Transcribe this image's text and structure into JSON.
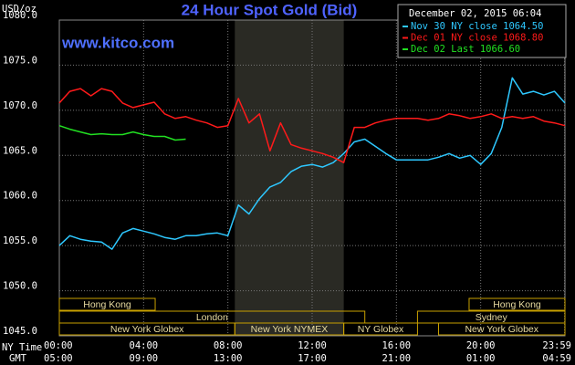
{
  "chart_data": {
    "type": "line",
    "title": "24 Hour Spot Gold (Bid)",
    "watermark": "www.kitco.com",
    "ylabel": "USD/oz",
    "legend_title": "December 02, 2015 06:04",
    "legend_position": "upper right",
    "grid": true,
    "x_label_ny": "NY Time",
    "x_label_gmt": "GMT",
    "xlim": [
      0,
      24
    ],
    "xticks": [
      {
        "value": 0,
        "label": "00:00"
      },
      {
        "value": 4,
        "label": "04:00"
      },
      {
        "value": 8,
        "label": "08:00"
      },
      {
        "value": 12,
        "label": "12:00"
      },
      {
        "value": 16,
        "label": "16:00"
      },
      {
        "value": 20,
        "label": "20:00"
      },
      {
        "value": 23.9833,
        "label": "23:59"
      }
    ],
    "x_gmt_labels": [
      "05:00",
      "09:00",
      "13:00",
      "17:00",
      "21:00",
      "01:00",
      "04:59"
    ],
    "ylim": [
      1045,
      1080
    ],
    "yticks": [
      {
        "value": 1045,
        "label": "1045.0"
      },
      {
        "value": 1050,
        "label": "1050.0"
      },
      {
        "value": 1055,
        "label": "1055.0"
      },
      {
        "value": 1060,
        "label": "1060.0"
      },
      {
        "value": 1065,
        "label": "1065.0"
      },
      {
        "value": 1070,
        "label": "1070.0"
      },
      {
        "value": 1075,
        "label": "1075.0"
      },
      {
        "value": 1080,
        "label": "1080.0"
      }
    ],
    "highlight": [
      8.33,
      13.5
    ],
    "sessions": [
      {
        "label": "Hong Kong",
        "start": 0,
        "end": 4.55,
        "row": 0
      },
      {
        "label": "Hong Kong",
        "start": 19.45,
        "end": 24,
        "row": 0
      },
      {
        "label": "London",
        "start": 0,
        "end": 14.5,
        "row": 1
      },
      {
        "label": "Sydney",
        "start": 17,
        "end": 24,
        "row": 1
      },
      {
        "label": "New York Globex",
        "start": 0,
        "end": 8.33,
        "row": 2
      },
      {
        "label": "New York NYMEX",
        "start": 8.33,
        "end": 13.5,
        "row": 2
      },
      {
        "label": "NY Globex",
        "start": 13.5,
        "end": 17,
        "row": 2
      },
      {
        "label": "New York Globex",
        "start": 18,
        "end": 24,
        "row": 2
      }
    ],
    "x": [
      0,
      0.5,
      1,
      1.5,
      2,
      2.5,
      3,
      3.5,
      4,
      4.5,
      5,
      5.5,
      6,
      6.5,
      7,
      7.5,
      8,
      8.5,
      9,
      9.5,
      10,
      10.5,
      11,
      11.5,
      12,
      12.5,
      13,
      13.5,
      14,
      14.5,
      15,
      15.5,
      16,
      16.5,
      17,
      17.5,
      18,
      18.5,
      19,
      19.5,
      20,
      20.5,
      21,
      21.5,
      22,
      22.5,
      23,
      23.5,
      24
    ],
    "series": [
      {
        "name": "Nov 30 NY close 1064.50",
        "color": "#2ec8ff",
        "values": [
          1055.0,
          1056.1,
          1055.7,
          1055.5,
          1055.4,
          1054.6,
          1056.4,
          1056.9,
          1056.6,
          1056.3,
          1055.9,
          1055.7,
          1056.1,
          1056.1,
          1056.3,
          1056.4,
          1056.1,
          1059.5,
          1058.5,
          1060.2,
          1061.5,
          1062.0,
          1063.2,
          1063.8,
          1064.0,
          1063.7,
          1064.2,
          1065.2,
          1066.5,
          1066.8,
          1066.0,
          1065.2,
          1064.5,
          1064.5,
          1064.5,
          1064.5,
          1064.8,
          1065.2,
          1064.7,
          1065.0,
          1064.0,
          1065.2,
          1068.1,
          1073.6,
          1071.8,
          1072.1,
          1071.7,
          1072.1,
          1070.8
        ]
      },
      {
        "name": "Dec 01 NY close 1068.80",
        "color": "#ff1a1a",
        "values": [
          1070.8,
          1072.1,
          1072.4,
          1071.6,
          1072.4,
          1072.1,
          1070.8,
          1070.3,
          1070.6,
          1070.9,
          1069.6,
          1069.1,
          1069.3,
          1068.9,
          1068.6,
          1068.1,
          1068.3,
          1071.3,
          1068.6,
          1069.6,
          1065.5,
          1068.6,
          1066.2,
          1065.8,
          1065.5,
          1065.2,
          1064.8,
          1064.2,
          1068.1,
          1068.1,
          1068.6,
          1068.9,
          1069.1,
          1069.1,
          1069.1,
          1068.9,
          1069.1,
          1069.6,
          1069.4,
          1069.1,
          1069.3,
          1069.6,
          1069.1,
          1069.3,
          1069.1,
          1069.3,
          1068.8,
          1068.6,
          1068.3
        ]
      },
      {
        "name": "Dec 02 Last 1066.60",
        "color": "#22e022",
        "values": [
          1068.3,
          1067.9,
          1067.6,
          1067.3,
          1067.4,
          1067.3,
          1067.3,
          1067.6,
          1067.3,
          1067.1,
          1067.1,
          1066.7,
          1066.8,
          null,
          null,
          null,
          null,
          null,
          null,
          null,
          null,
          null,
          null,
          null,
          null,
          null,
          null,
          null,
          null,
          null,
          null,
          null,
          null,
          null,
          null,
          null,
          null,
          null,
          null,
          null,
          null,
          null,
          null,
          null,
          null,
          null,
          null,
          null,
          null
        ]
      }
    ]
  }
}
